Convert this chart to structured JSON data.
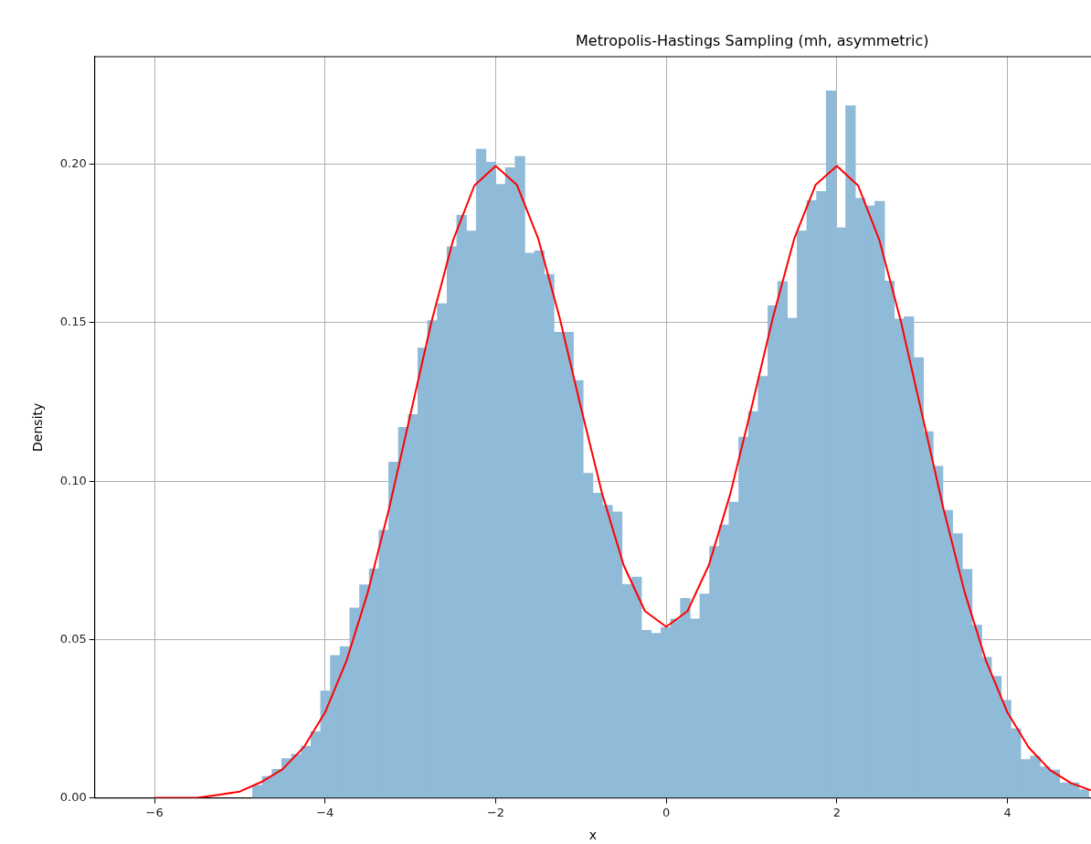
{
  "chart_data": {
    "type": "histogram",
    "title": "Metropolis-Hastings Sampling (mh, asymmetric)",
    "xlabel": "x",
    "ylabel": "Density",
    "xlim": [
      -6.7,
      4.98
    ],
    "ylim": [
      0,
      0.234
    ],
    "xticks": [
      {
        "value": -6,
        "label": "−6"
      },
      {
        "value": -4,
        "label": "−4"
      },
      {
        "value": -2,
        "label": "−2"
      },
      {
        "value": 0,
        "label": "0"
      },
      {
        "value": 2,
        "label": "2"
      },
      {
        "value": 4,
        "label": "4"
      }
    ],
    "yticks": [
      {
        "value": 0,
        "label": "0.00"
      },
      {
        "value": 0.05,
        "label": "0.05"
      },
      {
        "value": 0.1,
        "label": "0.10"
      },
      {
        "value": 0.15,
        "label": "0.15"
      },
      {
        "value": 0.2,
        "label": "0.20"
      }
    ],
    "grid": true,
    "series": [
      {
        "color": "#8fbbd9",
        "bins": [
          -4.85,
          -4.736,
          -4.622,
          -4.508,
          -4.394,
          -4.28,
          -4.166,
          -4.052,
          -3.938,
          -3.824,
          -3.71,
          -3.596,
          -3.482,
          -3.368,
          -3.254,
          -3.14,
          -3.026,
          -2.912,
          -2.798,
          -2.684,
          -2.57,
          -2.456,
          -2.342,
          -2.228,
          -2.114,
          -2.0,
          -1.886,
          -1.772,
          -1.658,
          -1.544,
          -1.43,
          -1.316,
          -1.202,
          -1.088,
          -0.974,
          -0.86,
          -0.746,
          -0.632,
          -0.518,
          -0.404,
          -0.29,
          -0.176,
          -0.062,
          0.052,
          0.166,
          0.28,
          0.394,
          0.508,
          0.622,
          0.736,
          0.85,
          0.964,
          1.078,
          1.192,
          1.306,
          1.42,
          1.534,
          1.648,
          1.762,
          1.876,
          1.99,
          2.104,
          2.218,
          2.332,
          2.446,
          2.56,
          2.674,
          2.788,
          2.902,
          3.016,
          3.13,
          3.244,
          3.358,
          3.472,
          3.586,
          3.7,
          3.814,
          3.928,
          4.042,
          4.156,
          4.27,
          4.384,
          4.498,
          4.612,
          4.726,
          4.84,
          4.954
        ],
        "values": [
          0.004,
          0.0068,
          0.009,
          0.0124,
          0.0138,
          0.0163,
          0.0209,
          0.0338,
          0.045,
          0.0478,
          0.06,
          0.0673,
          0.0723,
          0.0845,
          0.106,
          0.117,
          0.121,
          0.142,
          0.1507,
          0.156,
          0.174,
          0.184,
          0.179,
          0.2048,
          0.2007,
          0.1937,
          0.199,
          0.2025,
          0.172,
          0.1727,
          0.1653,
          0.147,
          0.147,
          0.1318,
          0.1025,
          0.0962,
          0.0924,
          0.0903,
          0.0674,
          0.0697,
          0.0529,
          0.052,
          0.0538,
          0.0565,
          0.063,
          0.0565,
          0.0644,
          0.0794,
          0.0862,
          0.0934,
          0.1139,
          0.122,
          0.1331,
          0.1554,
          0.163,
          0.1514,
          0.179,
          0.1886,
          0.1915,
          0.2232,
          0.18,
          0.2185,
          0.1893,
          0.1869,
          0.1884,
          0.1632,
          0.1512,
          0.1519,
          0.139,
          0.1156,
          0.1047,
          0.0908,
          0.0834,
          0.0722,
          0.0546,
          0.0444,
          0.0384,
          0.0308,
          0.0219,
          0.0121,
          0.0132,
          0.0098,
          0.0088,
          0.0048,
          0.0048,
          0.0026
        ]
      },
      {
        "type": "line",
        "color": "#ff0000",
        "x": [
          -6,
          -5.75,
          -5.5,
          -5.25,
          -5,
          -4.75,
          -4.5,
          -4.25,
          -4,
          -3.75,
          -3.5,
          -3.25,
          -3,
          -2.75,
          -2.5,
          -2.25,
          -2,
          -1.75,
          -1.5,
          -1.25,
          -1,
          -0.75,
          -0.5,
          -0.25,
          0,
          0.25,
          0.5,
          0.75,
          1,
          1.25,
          1.5,
          1.75,
          2,
          2.25,
          2.5,
          2.75,
          3,
          3.25,
          3.5,
          3.75,
          4,
          4.25,
          4.5,
          4.75,
          4.98
        ],
        "values": [
          0.0,
          0.0,
          0.0,
          0.001,
          0.002,
          0.005,
          0.009,
          0.016,
          0.027,
          0.0432,
          0.0648,
          0.0913,
          0.121,
          0.1506,
          0.176,
          0.1933,
          0.1995,
          0.1935,
          0.1765,
          0.1516,
          0.1232,
          0.0959,
          0.0735,
          0.059,
          0.054,
          0.059,
          0.0735,
          0.0959,
          0.1232,
          0.1516,
          0.1765,
          0.1935,
          0.1995,
          0.1933,
          0.176,
          0.1506,
          0.121,
          0.0913,
          0.0648,
          0.0432,
          0.027,
          0.0159,
          0.0088,
          0.0046,
          0.0024
        ]
      }
    ]
  }
}
